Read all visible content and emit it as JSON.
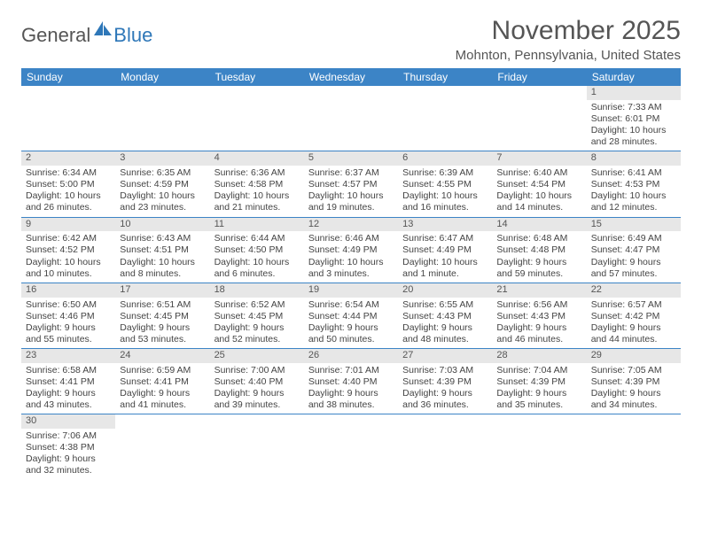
{
  "logo": {
    "text1": "General",
    "text2": "Blue"
  },
  "title": "November 2025",
  "location": "Mohnton, Pennsylvania, United States",
  "colors": {
    "header_bg": "#3c84c6",
    "header_fg": "#ffffff",
    "daynum_bg": "#e7e7e7",
    "row_border": "#3c84c6",
    "text": "#444444",
    "title_color": "#555555",
    "logo_blue": "#2e77b8"
  },
  "day_headers": [
    "Sunday",
    "Monday",
    "Tuesday",
    "Wednesday",
    "Thursday",
    "Friday",
    "Saturday"
  ],
  "weeks": [
    [
      null,
      null,
      null,
      null,
      null,
      null,
      {
        "n": "1",
        "sr": "Sunrise: 7:33 AM",
        "ss": "Sunset: 6:01 PM",
        "dl": "Daylight: 10 hours and 28 minutes."
      }
    ],
    [
      {
        "n": "2",
        "sr": "Sunrise: 6:34 AM",
        "ss": "Sunset: 5:00 PM",
        "dl": "Daylight: 10 hours and 26 minutes."
      },
      {
        "n": "3",
        "sr": "Sunrise: 6:35 AM",
        "ss": "Sunset: 4:59 PM",
        "dl": "Daylight: 10 hours and 23 minutes."
      },
      {
        "n": "4",
        "sr": "Sunrise: 6:36 AM",
        "ss": "Sunset: 4:58 PM",
        "dl": "Daylight: 10 hours and 21 minutes."
      },
      {
        "n": "5",
        "sr": "Sunrise: 6:37 AM",
        "ss": "Sunset: 4:57 PM",
        "dl": "Daylight: 10 hours and 19 minutes."
      },
      {
        "n": "6",
        "sr": "Sunrise: 6:39 AM",
        "ss": "Sunset: 4:55 PM",
        "dl": "Daylight: 10 hours and 16 minutes."
      },
      {
        "n": "7",
        "sr": "Sunrise: 6:40 AM",
        "ss": "Sunset: 4:54 PM",
        "dl": "Daylight: 10 hours and 14 minutes."
      },
      {
        "n": "8",
        "sr": "Sunrise: 6:41 AM",
        "ss": "Sunset: 4:53 PM",
        "dl": "Daylight: 10 hours and 12 minutes."
      }
    ],
    [
      {
        "n": "9",
        "sr": "Sunrise: 6:42 AM",
        "ss": "Sunset: 4:52 PM",
        "dl": "Daylight: 10 hours and 10 minutes."
      },
      {
        "n": "10",
        "sr": "Sunrise: 6:43 AM",
        "ss": "Sunset: 4:51 PM",
        "dl": "Daylight: 10 hours and 8 minutes."
      },
      {
        "n": "11",
        "sr": "Sunrise: 6:44 AM",
        "ss": "Sunset: 4:50 PM",
        "dl": "Daylight: 10 hours and 6 minutes."
      },
      {
        "n": "12",
        "sr": "Sunrise: 6:46 AM",
        "ss": "Sunset: 4:49 PM",
        "dl": "Daylight: 10 hours and 3 minutes."
      },
      {
        "n": "13",
        "sr": "Sunrise: 6:47 AM",
        "ss": "Sunset: 4:49 PM",
        "dl": "Daylight: 10 hours and 1 minute."
      },
      {
        "n": "14",
        "sr": "Sunrise: 6:48 AM",
        "ss": "Sunset: 4:48 PM",
        "dl": "Daylight: 9 hours and 59 minutes."
      },
      {
        "n": "15",
        "sr": "Sunrise: 6:49 AM",
        "ss": "Sunset: 4:47 PM",
        "dl": "Daylight: 9 hours and 57 minutes."
      }
    ],
    [
      {
        "n": "16",
        "sr": "Sunrise: 6:50 AM",
        "ss": "Sunset: 4:46 PM",
        "dl": "Daylight: 9 hours and 55 minutes."
      },
      {
        "n": "17",
        "sr": "Sunrise: 6:51 AM",
        "ss": "Sunset: 4:45 PM",
        "dl": "Daylight: 9 hours and 53 minutes."
      },
      {
        "n": "18",
        "sr": "Sunrise: 6:52 AM",
        "ss": "Sunset: 4:45 PM",
        "dl": "Daylight: 9 hours and 52 minutes."
      },
      {
        "n": "19",
        "sr": "Sunrise: 6:54 AM",
        "ss": "Sunset: 4:44 PM",
        "dl": "Daylight: 9 hours and 50 minutes."
      },
      {
        "n": "20",
        "sr": "Sunrise: 6:55 AM",
        "ss": "Sunset: 4:43 PM",
        "dl": "Daylight: 9 hours and 48 minutes."
      },
      {
        "n": "21",
        "sr": "Sunrise: 6:56 AM",
        "ss": "Sunset: 4:43 PM",
        "dl": "Daylight: 9 hours and 46 minutes."
      },
      {
        "n": "22",
        "sr": "Sunrise: 6:57 AM",
        "ss": "Sunset: 4:42 PM",
        "dl": "Daylight: 9 hours and 44 minutes."
      }
    ],
    [
      {
        "n": "23",
        "sr": "Sunrise: 6:58 AM",
        "ss": "Sunset: 4:41 PM",
        "dl": "Daylight: 9 hours and 43 minutes."
      },
      {
        "n": "24",
        "sr": "Sunrise: 6:59 AM",
        "ss": "Sunset: 4:41 PM",
        "dl": "Daylight: 9 hours and 41 minutes."
      },
      {
        "n": "25",
        "sr": "Sunrise: 7:00 AM",
        "ss": "Sunset: 4:40 PM",
        "dl": "Daylight: 9 hours and 39 minutes."
      },
      {
        "n": "26",
        "sr": "Sunrise: 7:01 AM",
        "ss": "Sunset: 4:40 PM",
        "dl": "Daylight: 9 hours and 38 minutes."
      },
      {
        "n": "27",
        "sr": "Sunrise: 7:03 AM",
        "ss": "Sunset: 4:39 PM",
        "dl": "Daylight: 9 hours and 36 minutes."
      },
      {
        "n": "28",
        "sr": "Sunrise: 7:04 AM",
        "ss": "Sunset: 4:39 PM",
        "dl": "Daylight: 9 hours and 35 minutes."
      },
      {
        "n": "29",
        "sr": "Sunrise: 7:05 AM",
        "ss": "Sunset: 4:39 PM",
        "dl": "Daylight: 9 hours and 34 minutes."
      }
    ],
    [
      {
        "n": "30",
        "sr": "Sunrise: 7:06 AM",
        "ss": "Sunset: 4:38 PM",
        "dl": "Daylight: 9 hours and 32 minutes."
      },
      null,
      null,
      null,
      null,
      null,
      null
    ]
  ]
}
